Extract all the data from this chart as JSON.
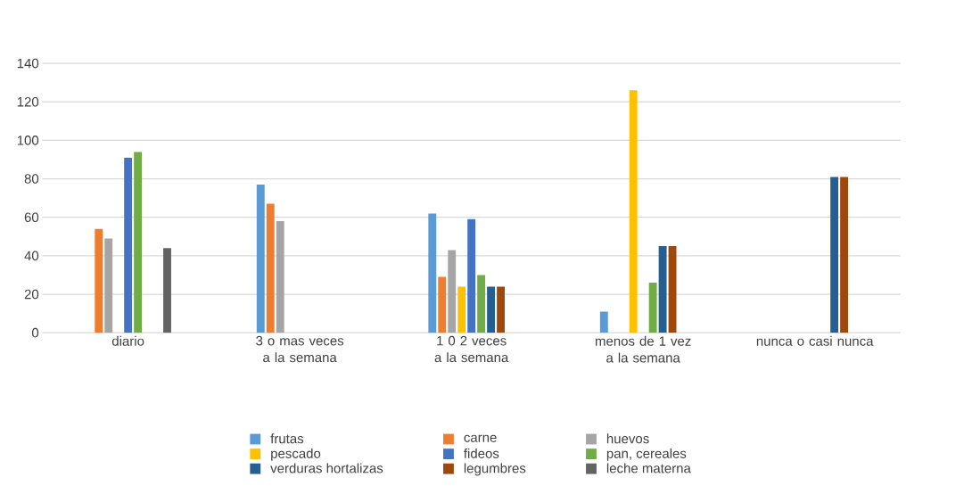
{
  "chart_data": {
    "type": "bar",
    "categories": [
      "diario",
      "3 o mas veces a la semana",
      "1 0 2 veces a la semana",
      "menos de 1 vez a la semana",
      "nunca o casi nunca"
    ],
    "ylim": [
      0,
      140
    ],
    "yticks": [
      0,
      20,
      40,
      60,
      80,
      100,
      120,
      140
    ],
    "grid": "y",
    "legend": "bottom",
    "series": [
      {
        "name": "frutas",
        "color": "#5b9bd5",
        "values": [
          0,
          77,
          62,
          11,
          0
        ]
      },
      {
        "name": "carne",
        "color": "#ed7d31",
        "values": [
          54,
          67,
          29,
          0,
          0
        ]
      },
      {
        "name": "huevos",
        "color": "#a5a5a5",
        "values": [
          49,
          58,
          43,
          0,
          0
        ]
      },
      {
        "name": "pescado",
        "color": "#ffc000",
        "values": [
          0,
          0,
          24,
          126,
          0
        ]
      },
      {
        "name": "fideos",
        "color": "#4472c4",
        "values": [
          91,
          0,
          59,
          0,
          0
        ]
      },
      {
        "name": "pan, cereales",
        "color": "#70ad47",
        "values": [
          94,
          0,
          30,
          26,
          0
        ]
      },
      {
        "name": "verduras hortalizas",
        "color": "#255e91",
        "values": [
          0,
          0,
          24,
          45,
          81
        ]
      },
      {
        "name": "legumbres",
        "color": "#9e480e",
        "values": [
          0,
          0,
          24,
          45,
          81
        ]
      },
      {
        "name": "leche materna",
        "color": "#636363",
        "values": [
          44,
          0,
          0,
          0,
          0
        ]
      }
    ]
  }
}
